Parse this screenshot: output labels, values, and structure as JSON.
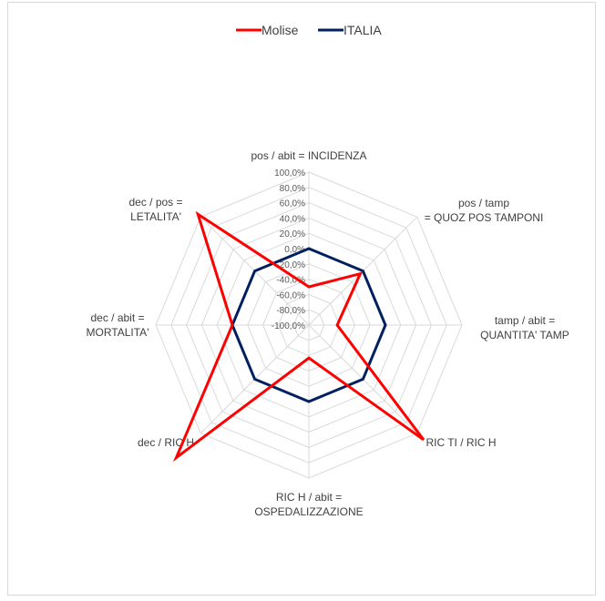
{
  "chart_data": {
    "type": "radar",
    "title": "",
    "legend_position": "top",
    "axes": [
      [
        "pos / abit = INCIDENZA"
      ],
      [
        "pos / tamp",
        "= QUOZ POS TAMPONI"
      ],
      [
        "tamp / abit =",
        "QUANTITA' TAMP"
      ],
      [
        "RIC TI / RIC H"
      ],
      [
        "RIC H / abit =",
        "OSPEDALIZZAZIONE"
      ],
      [
        "dec  / RIC H"
      ],
      [
        "dec / abit =",
        "MORTALITA'"
      ],
      [
        "dec / pos =",
        "LETALITA'"
      ]
    ],
    "range": [
      -100,
      100
    ],
    "tick_step": 20,
    "tick_labels": [
      "-100,0%",
      "-80,0%",
      "-60,0%",
      "-40,0%",
      "-20,0%",
      "0,0%",
      "20,0%",
      "40,0%",
      "60,0%",
      "80,0%",
      "100,0%"
    ],
    "grid": true,
    "series": [
      {
        "name": "Molise",
        "color": "#ff0000",
        "values": [
          -50,
          -5,
          -63,
          112,
          -57,
          145,
          0,
          105
        ]
      },
      {
        "name": "ITALIA",
        "color": "#002060",
        "values": [
          0,
          0,
          0,
          0,
          0,
          0,
          0,
          0
        ]
      }
    ]
  }
}
